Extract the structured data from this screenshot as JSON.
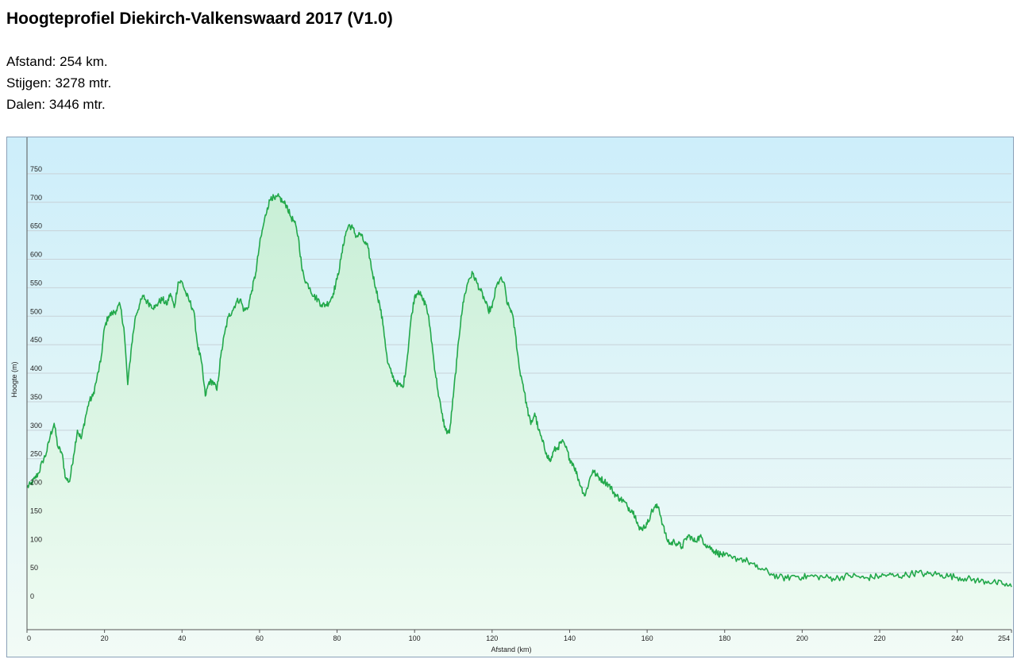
{
  "page": {
    "title": "Hoogteprofiel Diekirch-Valkenswaard 2017 (V1.0)",
    "stats": [
      {
        "label": "Afstand:",
        "value": "254 km."
      },
      {
        "label": "Stijgen:",
        "value": "3278 mtr."
      },
      {
        "label": "Dalen:",
        "value": "3446 mtr."
      }
    ]
  },
  "chart_data": {
    "type": "area",
    "xlabel": "Afstand  (km)",
    "ylabel": "Hoogte (m)",
    "xlim": [
      0,
      254
    ],
    "ylim": [
      -50,
      800
    ],
    "x_ticks": [
      0,
      20,
      40,
      60,
      80,
      100,
      120,
      140,
      160,
      180,
      200,
      220,
      240,
      254
    ],
    "y_ticks": [
      0,
      50,
      100,
      150,
      200,
      250,
      300,
      350,
      400,
      450,
      500,
      550,
      600,
      650,
      700,
      750
    ],
    "grid": {
      "horizontal": true,
      "vertical": false
    },
    "colors": {
      "line": "#22a84a",
      "fill_top": "#c8efd6",
      "fill_bottom": "#eefbf2",
      "background_top": "#cdeefa",
      "background_bottom": "#f2fbf6",
      "grid": "#c8d2d8"
    },
    "series": [
      {
        "x": [
          0,
          1,
          2,
          3,
          4,
          5,
          6,
          7,
          8,
          9,
          10,
          11,
          12,
          13,
          14,
          15,
          16,
          17,
          18,
          19,
          20,
          21,
          22,
          23,
          24,
          25,
          26,
          27,
          28,
          29,
          30,
          31,
          32,
          33,
          34,
          35,
          36,
          37,
          38,
          39,
          40,
          41,
          42,
          43,
          44,
          45,
          46,
          47,
          48,
          49,
          50,
          51,
          52,
          53,
          54,
          55,
          56,
          57,
          58,
          59,
          60,
          61,
          62,
          63,
          64,
          65,
          66,
          67,
          68,
          69,
          70,
          71,
          72,
          73,
          74,
          75,
          76,
          77,
          78,
          79,
          80,
          81,
          82,
          83,
          84,
          85,
          86,
          87,
          88,
          89,
          90,
          91,
          92,
          93,
          94,
          95,
          96,
          97,
          98,
          99,
          100,
          101,
          102,
          103,
          104,
          105,
          106,
          107,
          108,
          109,
          110,
          111,
          112,
          113,
          114,
          115,
          116,
          117,
          118,
          119,
          120,
          121,
          122,
          123,
          124,
          125,
          126,
          127,
          128,
          129,
          130,
          131,
          132,
          133,
          134,
          135,
          136,
          137,
          138,
          139,
          140,
          141,
          142,
          143,
          144,
          145,
          146,
          147,
          148,
          149,
          150,
          151,
          152,
          153,
          154,
          155,
          156,
          157,
          158,
          159,
          160,
          161,
          162,
          163,
          164,
          165,
          166,
          167,
          168,
          169,
          170,
          171,
          172,
          173,
          174,
          175,
          176,
          177,
          178,
          179,
          180,
          182,
          184,
          186,
          188,
          190,
          192,
          194,
          196,
          198,
          200,
          202,
          204,
          206,
          208,
          210,
          212,
          214,
          216,
          218,
          220,
          222,
          224,
          226,
          228,
          230,
          232,
          234,
          236,
          238,
          240,
          242,
          244,
          246,
          248,
          250,
          252,
          254
        ],
        "y": [
          200,
          205,
          215,
          225,
          245,
          260,
          290,
          312,
          270,
          260,
          215,
          210,
          255,
          300,
          285,
          320,
          350,
          360,
          390,
          420,
          480,
          500,
          505,
          510,
          520,
          480,
          380,
          450,
          500,
          520,
          535,
          525,
          520,
          515,
          525,
          530,
          520,
          540,
          515,
          560,
          560,
          540,
          525,
          510,
          450,
          420,
          360,
          385,
          385,
          370,
          430,
          470,
          500,
          510,
          525,
          530,
          510,
          515,
          545,
          575,
          625,
          660,
          690,
          710,
          705,
          710,
          700,
          695,
          675,
          665,
          640,
          580,
          560,
          550,
          535,
          530,
          520,
          520,
          525,
          540,
          565,
          600,
          640,
          660,
          655,
          640,
          645,
          630,
          620,
          580,
          550,
          520,
          480,
          420,
          400,
          385,
          380,
          375,
          420,
          490,
          535,
          545,
          530,
          520,
          480,
          420,
          370,
          330,
          300,
          295,
          360,
          430,
          500,
          540,
          565,
          575,
          560,
          545,
          530,
          510,
          515,
          550,
          565,
          560,
          520,
          510,
          470,
          410,
          380,
          340,
          310,
          330,
          300,
          280,
          260,
          245,
          265,
          270,
          280,
          270,
          250,
          240,
          220,
          200,
          185,
          210,
          230,
          220,
          215,
          210,
          205,
          195,
          185,
          180,
          175,
          165,
          160,
          150,
          125,
          130,
          135,
          155,
          165,
          165,
          135,
          110,
          100,
          105,
          100,
          95,
          110,
          115,
          105,
          110,
          112,
          100,
          95,
          90,
          85,
          82,
          80,
          75,
          75,
          70,
          60,
          55,
          48,
          42,
          40,
          45,
          42,
          44,
          43,
          42,
          40,
          42,
          45,
          44,
          40,
          42,
          44,
          46,
          44,
          45,
          48,
          50,
          47,
          48,
          46,
          44,
          42,
          40,
          38,
          35,
          35,
          32,
          30,
          25
        ]
      }
    ]
  }
}
